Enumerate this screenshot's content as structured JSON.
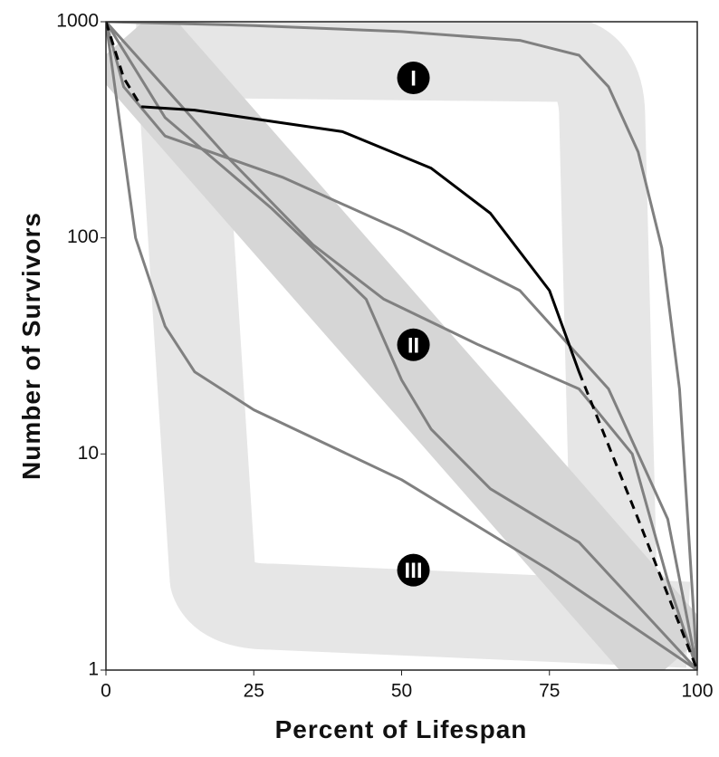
{
  "chart_data": {
    "type": "line",
    "x_label": "Percent of Lifespan",
    "y_label": "Number of Survivors",
    "xlim": [
      0,
      100
    ],
    "xticks": [
      0,
      25,
      50,
      75,
      100
    ],
    "ylim": [
      1,
      1000
    ],
    "yticks": [
      1,
      10,
      100,
      1000
    ],
    "log_y": true,
    "annotations": [
      {
        "text": "I",
        "x": 52,
        "y": 550
      },
      {
        "text": "II",
        "x": 52,
        "y": 32
      },
      {
        "text": "III",
        "x": 52,
        "y": 2.9
      }
    ],
    "series": [
      {
        "color": "#808080",
        "style": "solid",
        "x": [
          0,
          25,
          50,
          70,
          80,
          85,
          90,
          94,
          97,
          100
        ],
        "values": [
          1000,
          960,
          900,
          820,
          700,
          500,
          250,
          90,
          20,
          1
        ]
      },
      {
        "color": "#808080",
        "style": "solid",
        "x": [
          0,
          3,
          10,
          30,
          50,
          70,
          85,
          95,
          100
        ],
        "values": [
          1000,
          500,
          296,
          190,
          108,
          57,
          20,
          5,
          1
        ]
      },
      {
        "color": "#808080",
        "style": "solid",
        "x": [
          0,
          20,
          35,
          47,
          63,
          80,
          89,
          95,
          100
        ],
        "values": [
          1000,
          245,
          93,
          52,
          32,
          20,
          10,
          2.6,
          1
        ]
      },
      {
        "color": "#808080",
        "style": "solid",
        "x": [
          0,
          10,
          28,
          44,
          50,
          55,
          65,
          80,
          100
        ],
        "values": [
          1000,
          360,
          137,
          52,
          22,
          13,
          6.9,
          3.9,
          1
        ]
      },
      {
        "color": "#808080",
        "style": "solid",
        "x": [
          0,
          5,
          10,
          15,
          25,
          50,
          75,
          100
        ],
        "values": [
          1000,
          100,
          39,
          24,
          16,
          7.6,
          2.9,
          1
        ]
      },
      {
        "color": "#000000",
        "style": "dashed",
        "x": [
          0,
          3,
          6
        ],
        "values": [
          1000,
          550,
          404
        ]
      },
      {
        "color": "#000000",
        "style": "solid",
        "x": [
          6,
          15,
          40,
          55,
          65,
          75,
          80
        ],
        "values": [
          404,
          390,
          310,
          210,
          130,
          57,
          24
        ]
      },
      {
        "color": "#000000",
        "style": "dashed",
        "x": [
          80,
          90,
          100
        ],
        "values": [
          24,
          5,
          1
        ]
      }
    ]
  }
}
